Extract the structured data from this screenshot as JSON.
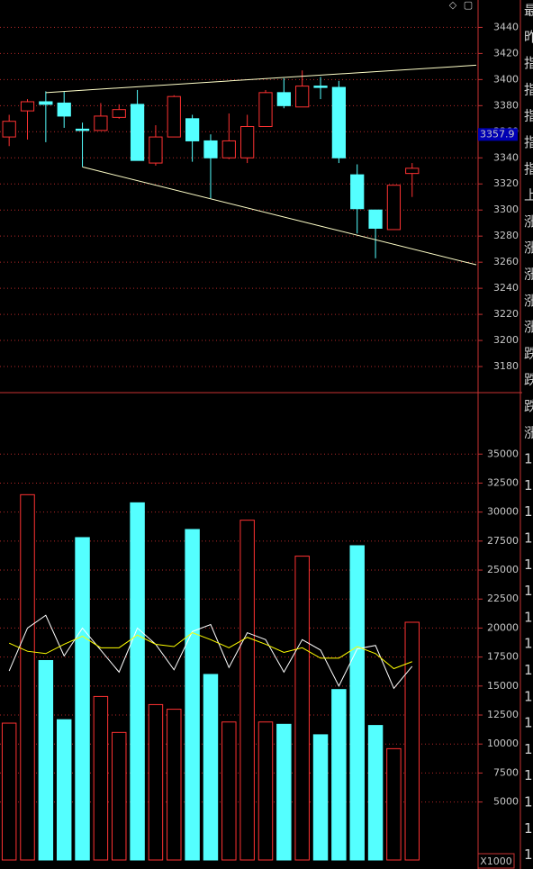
{
  "chart_data": [
    {
      "type": "candlestick",
      "up_color": "#ff3232",
      "down_color": "#54ffff",
      "xlim": [
        -0.5,
        25.6
      ],
      "ylim": [
        3160,
        3461
      ],
      "yticks": [
        3180,
        3200,
        3220,
        3240,
        3260,
        3280,
        3300,
        3320,
        3340,
        3360,
        3380,
        3400,
        3420,
        3440
      ],
      "grid": true,
      "open": [
        3356,
        3376,
        3383,
        3382,
        3362,
        3361,
        3371,
        3381,
        3336,
        3356,
        3370,
        3353,
        3340,
        3340,
        3364,
        3390,
        3379,
        3395,
        3394,
        3327,
        3300,
        3285,
        3328
      ],
      "high": [
        3373,
        3385,
        3391,
        3391,
        3367,
        3382,
        3381,
        3392,
        3365,
        3388,
        3373,
        3358,
        3374,
        3373,
        3392,
        3401,
        3407,
        3402,
        3399,
        3335,
        3300,
        3319,
        3336
      ],
      "low": [
        3349,
        3354,
        3352,
        3363,
        3333,
        3361,
        3370,
        3338,
        3334,
        3356,
        3337,
        3309,
        3339,
        3336,
        3364,
        3378,
        3379,
        3385,
        3336,
        3282,
        3263,
        3285,
        3310
      ],
      "close": [
        3368,
        3383,
        3381,
        3372,
        3361,
        3372,
        3377,
        3338,
        3356,
        3387,
        3353,
        3340,
        3353,
        3364,
        3390,
        3380,
        3395,
        3394,
        3340,
        3301,
        3286,
        3319,
        3332
      ],
      "trendlines": [
        {
          "color": "#ffffc8",
          "start": [
            2,
            3390
          ],
          "end": [
            25.5,
            3411
          ]
        },
        {
          "color": "#ffffc8",
          "start": [
            4,
            3333
          ],
          "end": [
            25.5,
            3258
          ]
        }
      ],
      "last_price": 3357.9
    },
    {
      "type": "volume",
      "ylim": [
        0,
        40300
      ],
      "unit_label": "X1000",
      "yticks": [
        5000,
        7500,
        10000,
        12500,
        15000,
        17500,
        20000,
        22500,
        25000,
        27500,
        30000,
        32500,
        35000
      ],
      "grid": true,
      "values": [
        11800,
        31500,
        17200,
        12100,
        27800,
        14100,
        11000,
        30800,
        13400,
        13000,
        28500,
        16000,
        11900,
        29300,
        11900,
        11700,
        26200,
        10800,
        14700,
        27100,
        11600,
        9600,
        20500
      ],
      "lines": [
        {
          "color": "#ffffff",
          "values": [
            16300,
            20000,
            21100,
            17600,
            20000,
            18100,
            16200,
            20000,
            18600,
            16400,
            19700,
            20300,
            16600,
            19600,
            19000,
            16200,
            19000,
            18100,
            15000,
            18200,
            18500,
            14800,
            16700
          ]
        },
        {
          "color": "#ffff00",
          "values": [
            18700,
            18000,
            17800,
            18600,
            19300,
            18300,
            18300,
            19400,
            18600,
            18400,
            19600,
            19000,
            18300,
            19200,
            18600,
            17900,
            18300,
            17400,
            17400,
            18400,
            17800,
            16500,
            17100
          ]
        }
      ]
    }
  ],
  "toolbar": [
    "◇",
    "▢"
  ],
  "side_panel": [
    "最",
    "昨",
    "指",
    "指",
    "指",
    "指",
    "指",
    "上",
    "涨",
    "涨",
    "涨",
    "涨",
    "涨",
    "跌",
    "跌",
    "跌",
    "涨",
    "1",
    "1",
    "1",
    "1",
    "1",
    "1",
    "1",
    "1",
    "1",
    "1",
    "1",
    "1",
    "1",
    "1",
    "1",
    "1"
  ]
}
